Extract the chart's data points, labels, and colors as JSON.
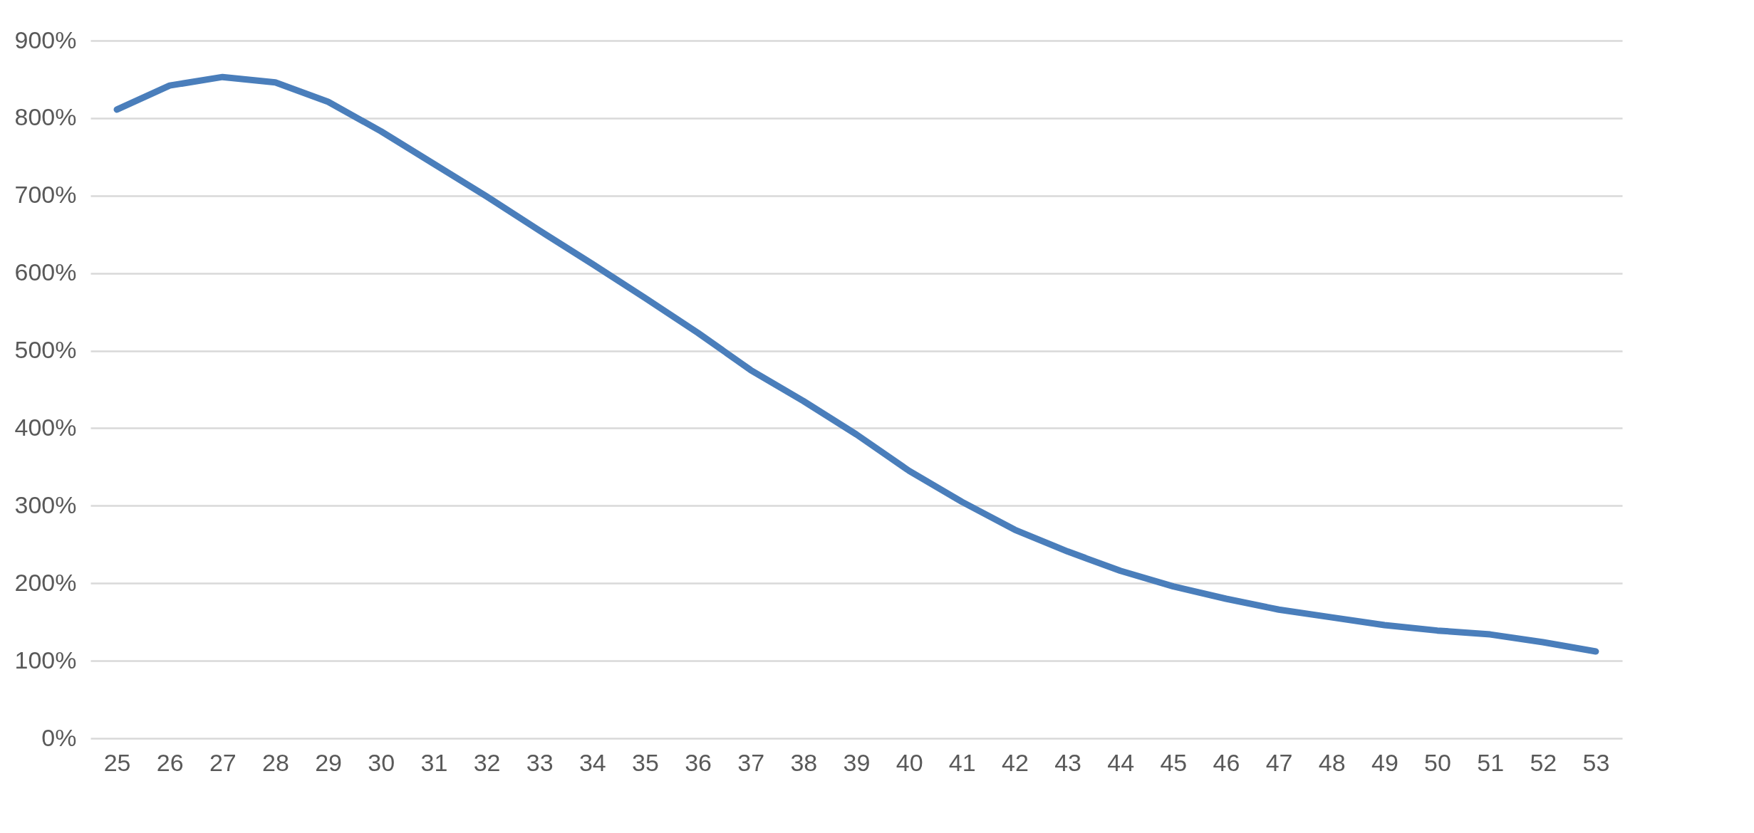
{
  "chart_data": {
    "type": "line",
    "categories": [
      "25",
      "26",
      "27",
      "28",
      "29",
      "30",
      "31",
      "32",
      "33",
      "34",
      "35",
      "36",
      "37",
      "38",
      "39",
      "40",
      "41",
      "42",
      "43",
      "44",
      "45",
      "46",
      "47",
      "48",
      "49",
      "50",
      "51",
      "52",
      "53"
    ],
    "series": [
      {
        "color": "#4a7ebb",
        "values": [
          811,
          842,
          853,
          846,
          821,
          783,
          741,
          699,
          655,
          612,
          568,
          523,
          475,
          435,
          392,
          345,
          305,
          269,
          241,
          216,
          196,
          180,
          166,
          156,
          146,
          139,
          134,
          124,
          112
        ]
      }
    ],
    "ylim": [
      0,
      900
    ],
    "yticks": [
      {
        "value": 0,
        "label": "0%"
      },
      {
        "value": 100,
        "label": "100%"
      },
      {
        "value": 200,
        "label": "200%"
      },
      {
        "value": 300,
        "label": "300%"
      },
      {
        "value": 400,
        "label": "400%"
      },
      {
        "value": 500,
        "label": "500%"
      },
      {
        "value": 600,
        "label": "600%"
      },
      {
        "value": 700,
        "label": "700%"
      },
      {
        "value": 800,
        "label": "800%"
      },
      {
        "value": 900,
        "label": "900%"
      }
    ],
    "grid": "y",
    "marker": "none",
    "line_style": "solid"
  }
}
